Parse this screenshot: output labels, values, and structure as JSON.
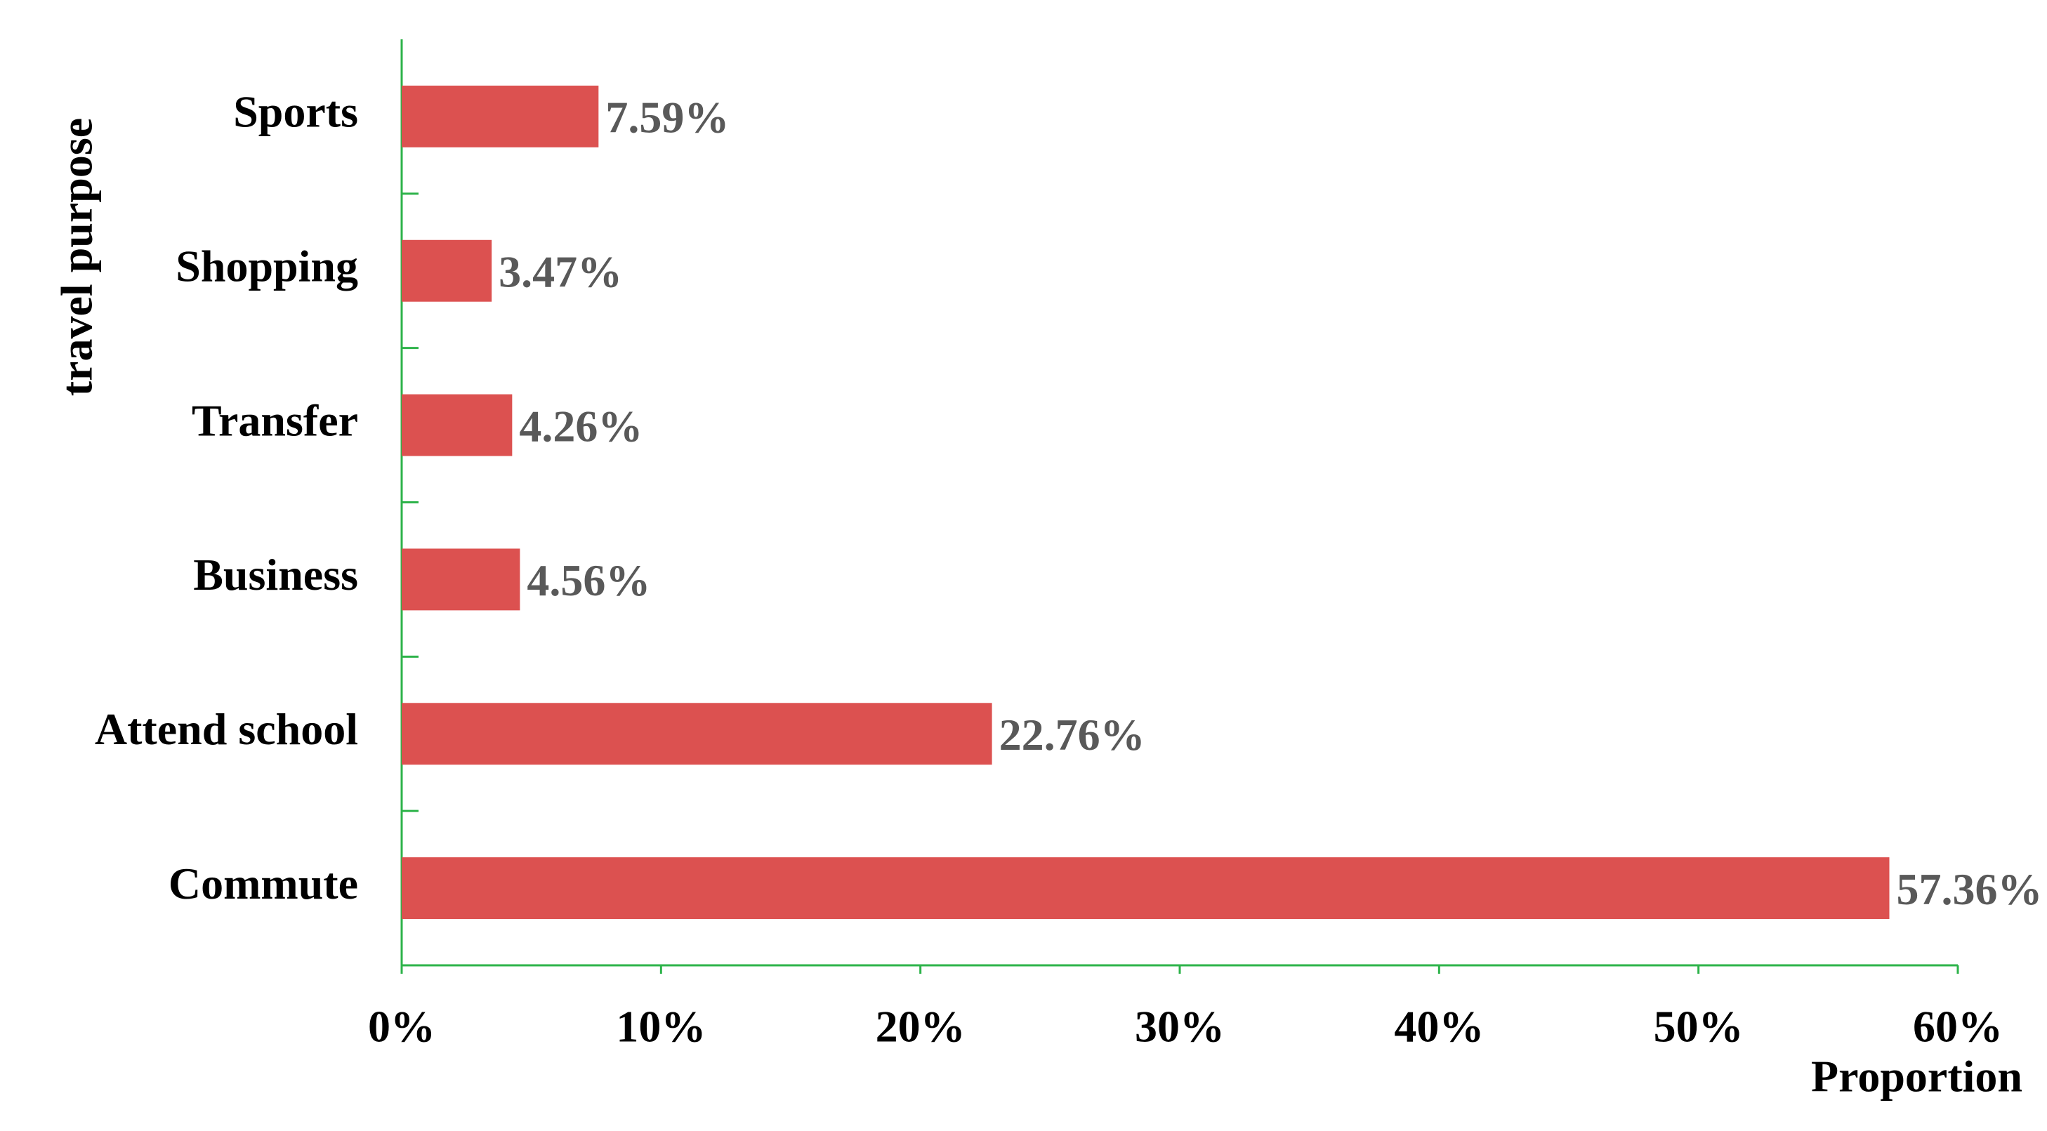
{
  "chart_data": {
    "type": "hbar",
    "categories": [
      "Sports",
      "Shopping",
      "Transfer",
      "Business",
      "Attend school",
      "Commute"
    ],
    "values": [
      7.59,
      3.47,
      4.26,
      4.56,
      22.76,
      57.36
    ],
    "value_labels": [
      "7.59%",
      "3.47%",
      "4.26%",
      "4.56%",
      "22.76%",
      "57.36%"
    ],
    "color": "#dc5150",
    "x_label": "Proportion",
    "y_label": "travel purpose",
    "xlim": [
      0,
      60
    ],
    "xticks": [
      {
        "value": 0,
        "label": "0%"
      },
      {
        "value": 10,
        "label": "10%"
      },
      {
        "value": 20,
        "label": "20%"
      },
      {
        "value": 30,
        "label": "30%"
      },
      {
        "value": 40,
        "label": "40%"
      },
      {
        "value": 50,
        "label": "50%"
      },
      {
        "value": 60,
        "label": "60%"
      }
    ],
    "grid": false
  }
}
